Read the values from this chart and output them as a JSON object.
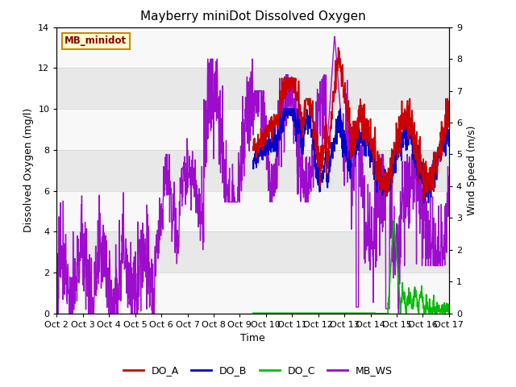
{
  "title": "Mayberry miniDot Dissolved Oxygen",
  "xlabel": "Time",
  "ylabel_left": "Dissolved Oxygen (mg/l)",
  "ylabel_right": "Wind Speed (m/s)",
  "legend_label": "MB_minidot",
  "ylim_left": [
    0,
    14
  ],
  "ylim_right": [
    0.0,
    9.0
  ],
  "yticks_left": [
    0,
    2,
    4,
    6,
    8,
    10,
    12,
    14
  ],
  "yticks_right": [
    0.0,
    1.0,
    2.0,
    3.0,
    4.0,
    5.0,
    6.0,
    7.0,
    8.0,
    9.0
  ],
  "xtick_labels": [
    "Oct 2",
    "Oct 3",
    "Oct 4",
    "Oct 5",
    "Oct 6",
    "Oct 7",
    "Oct 8",
    "Oct 9",
    "Oct 10",
    "Oct 11",
    "Oct 12",
    "Oct 13",
    "Oct 14",
    "Oct 15",
    "Oct 16",
    "Oct 17"
  ],
  "colors": {
    "DO_A": "#cc0000",
    "DO_B": "#0000cc",
    "DO_C": "#00bb00",
    "MB_WS": "#9900cc",
    "legend_box_bg": "#ffffcc",
    "legend_box_edge": "#cc8800",
    "grid_color": "#cccccc",
    "bg_stripe": "#e8e8e8",
    "bg_white": "#f8f8f8"
  },
  "line_widths": {
    "DO_A": 1.2,
    "DO_B": 1.2,
    "DO_C": 1.2,
    "MB_WS": 1.0
  }
}
